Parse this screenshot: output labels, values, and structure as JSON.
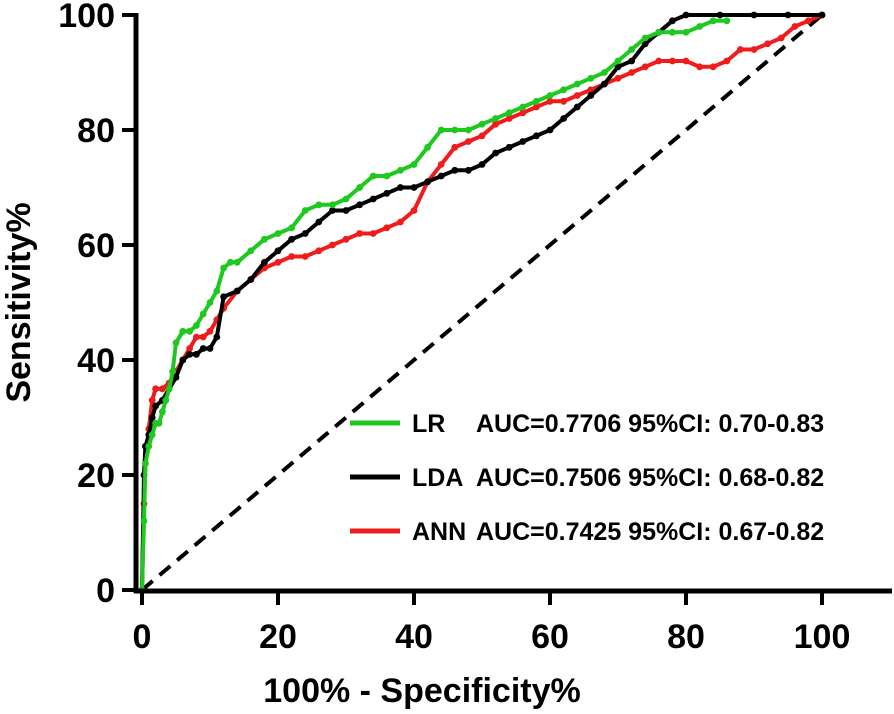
{
  "chart_data": {
    "type": "line",
    "title": "",
    "xlabel": "100% - Specificity%",
    "ylabel": "Sensitivity%",
    "xlim": [
      0,
      100
    ],
    "ylim": [
      0,
      100
    ],
    "x_ticks": [
      "0",
      "20",
      "40",
      "60",
      "80",
      "100"
    ],
    "y_ticks": [
      "0",
      "20",
      "40",
      "60",
      "80",
      "100"
    ],
    "grid": false,
    "legend_position": "bottom-right",
    "reference_line": {
      "style": "dashed",
      "color": "#000000",
      "from": [
        0,
        0
      ],
      "to": [
        100,
        100
      ]
    },
    "series": [
      {
        "name": "LR",
        "legend_text": "AUC=0.7706 95%CI: 0.70-0.83",
        "color": "#1ec81e",
        "x": [
          0,
          0.3,
          0.5,
          1,
          1.5,
          2,
          2.5,
          3,
          3.5,
          4,
          4.5,
          5,
          6,
          7,
          8,
          9,
          10,
          11,
          12,
          13,
          14,
          16,
          18,
          20,
          22,
          24,
          26,
          28,
          30,
          32,
          34,
          36,
          38,
          40,
          42,
          44,
          46,
          48,
          50,
          52,
          54,
          56,
          58,
          60,
          62,
          64,
          66,
          68,
          70,
          72,
          74,
          76,
          78,
          80,
          82,
          84,
          86
        ],
        "y": [
          0,
          12,
          22,
          25,
          27,
          29,
          29,
          31,
          33,
          35,
          38,
          43,
          45,
          45,
          46,
          48,
          50,
          52,
          56,
          57,
          57,
          59,
          61,
          62,
          63,
          66,
          67,
          67,
          68,
          70,
          72,
          72,
          73,
          74,
          77,
          80,
          80,
          80,
          81,
          82,
          83,
          84,
          85,
          86,
          87,
          88,
          89,
          90,
          92,
          94,
          96,
          97,
          97,
          97,
          98,
          99,
          99
        ]
      },
      {
        "name": "LDA",
        "legend_text": "AUC=0.7506 95%CI: 0.68-0.82",
        "color": "#000000",
        "x": [
          0,
          0.3,
          0.5,
          1,
          1.5,
          2,
          3,
          4,
          5,
          6,
          7,
          8,
          9,
          10,
          11,
          12,
          14,
          16,
          18,
          20,
          22,
          24,
          26,
          28,
          30,
          32,
          34,
          36,
          38,
          40,
          42,
          44,
          46,
          48,
          50,
          52,
          54,
          56,
          58,
          60,
          62,
          64,
          66,
          68,
          70,
          72,
          74,
          76,
          78,
          80,
          85,
          90,
          95,
          100
        ],
        "y": [
          0,
          20,
          25,
          27,
          30,
          32,
          33,
          35,
          37,
          40,
          41,
          41,
          42,
          42,
          44,
          51,
          52,
          54,
          57,
          59,
          61,
          62,
          64,
          66,
          66,
          67,
          68,
          69,
          70,
          70,
          71,
          72,
          73,
          73,
          74,
          76,
          77,
          78,
          79,
          80,
          82,
          84,
          86,
          88,
          91,
          92,
          95,
          97,
          99,
          100,
          100,
          100,
          100,
          100
        ]
      },
      {
        "name": "ANN",
        "legend_text": "AUC=0.7425 95%CI: 0.67-0.82",
        "color": "#ee1c1c",
        "x": [
          0,
          0.3,
          0.5,
          1,
          1.5,
          2,
          3,
          4,
          5,
          6,
          7,
          8,
          9,
          10,
          11,
          12,
          14,
          16,
          18,
          20,
          22,
          24,
          26,
          28,
          30,
          32,
          34,
          36,
          38,
          40,
          42,
          44,
          46,
          48,
          50,
          52,
          54,
          56,
          58,
          60,
          62,
          64,
          66,
          68,
          70,
          72,
          74,
          76,
          78,
          80,
          82,
          84,
          86,
          88,
          90,
          92,
          94,
          96,
          98,
          100
        ],
        "y": [
          0,
          15,
          22,
          28,
          33,
          35,
          35,
          36,
          38,
          40,
          42,
          44,
          44,
          45,
          47,
          49,
          52,
          54,
          56,
          57,
          58,
          58,
          59,
          60,
          61,
          62,
          62,
          63,
          64,
          66,
          71,
          74,
          77,
          78,
          79,
          81,
          82,
          83,
          84,
          85,
          85,
          86,
          87,
          88,
          89,
          90,
          91,
          92,
          92,
          92,
          91,
          91,
          92,
          94,
          94,
          95,
          96,
          98,
          99,
          100
        ]
      }
    ]
  }
}
